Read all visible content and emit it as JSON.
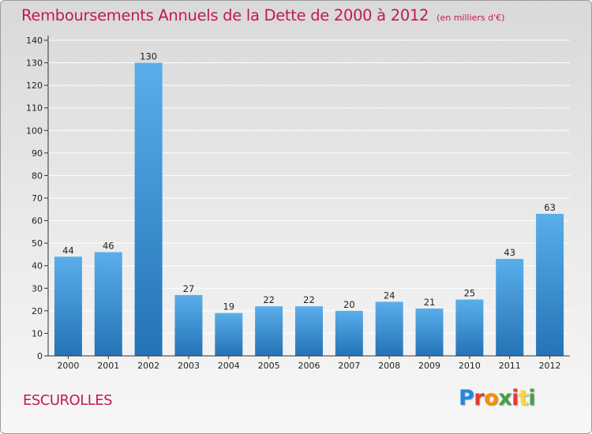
{
  "title": "Remboursements Annuels de la Dette de 2000 à 2012",
  "subtitle": "(en milliers d'€)",
  "commune": "ESCUROLLES",
  "logo": {
    "letters": [
      "P",
      "r",
      "o",
      "x",
      "i",
      "t",
      "i"
    ],
    "colors": [
      "#1e88e5",
      "#e53935",
      "#fb8c00",
      "#43a047",
      "#e53935",
      "#fdd835",
      "#43a047"
    ]
  },
  "chart_data": {
    "type": "bar",
    "categories": [
      "2000",
      "2001",
      "2002",
      "2003",
      "2004",
      "2005",
      "2006",
      "2007",
      "2008",
      "2009",
      "2010",
      "2011",
      "2012"
    ],
    "values": [
      44,
      46,
      130,
      27,
      19,
      22,
      22,
      20,
      24,
      21,
      25,
      43,
      63
    ],
    "ylim": [
      0,
      140
    ],
    "yticks": [
      0,
      10,
      20,
      30,
      40,
      50,
      60,
      70,
      80,
      90,
      100,
      110,
      120,
      130,
      140
    ],
    "grid": true,
    "bar_color": "#3d8fd3"
  }
}
